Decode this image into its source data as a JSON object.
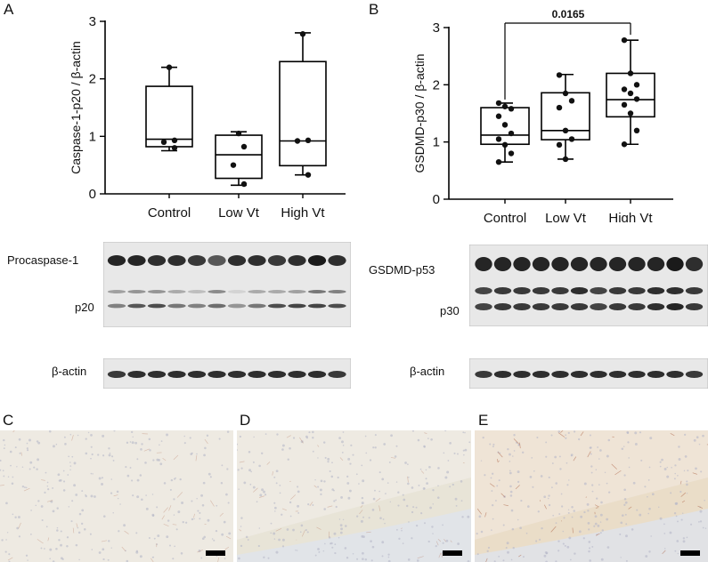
{
  "panels": {
    "a": "A",
    "b": "B",
    "c": "C",
    "d": "D",
    "e": "E"
  },
  "chart_data": [
    {
      "type": "box",
      "panel": "A",
      "ylabel": "Caspase-1-p20 / β-actin",
      "ylim": [
        0,
        3
      ],
      "yticks": [
        "0",
        "1",
        "2",
        "3"
      ],
      "categories": [
        "Control",
        "Low Vt",
        "High Vt"
      ],
      "boxes": [
        {
          "min": 0.75,
          "q1": 0.82,
          "median": 0.95,
          "q3": 1.87,
          "max": 2.2
        },
        {
          "min": 0.15,
          "q1": 0.27,
          "median": 0.68,
          "q3": 1.02,
          "max": 1.08
        },
        {
          "min": 0.33,
          "q1": 0.49,
          "median": 0.92,
          "q3": 2.3,
          "max": 2.8
        }
      ],
      "points": [
        [
          2.2,
          0.93,
          0.9,
          0.8
        ],
        [
          1.05,
          0.82,
          0.5,
          0.17
        ],
        [
          2.78,
          0.93,
          0.92,
          0.33
        ]
      ]
    },
    {
      "type": "box",
      "panel": "B",
      "ylabel": "GSDMD-p30 / β-actin",
      "ylim": [
        0,
        3
      ],
      "yticks": [
        "0",
        "1",
        "2",
        "3"
      ],
      "categories": [
        "Control",
        "Low Vt",
        "High Vt"
      ],
      "boxes": [
        {
          "min": 0.65,
          "q1": 0.96,
          "median": 1.12,
          "q3": 1.6,
          "max": 1.68
        },
        {
          "min": 0.7,
          "q1": 1.04,
          "median": 1.2,
          "q3": 1.86,
          "max": 2.18
        },
        {
          "min": 0.96,
          "q1": 1.44,
          "median": 1.74,
          "q3": 2.2,
          "max": 2.78
        }
      ],
      "points": [
        [
          1.68,
          1.62,
          1.58,
          1.45,
          1.3,
          1.15,
          1.05,
          0.95,
          0.8,
          0.65
        ],
        [
          2.17,
          1.85,
          1.72,
          1.6,
          1.2,
          1.05,
          0.95,
          0.7
        ],
        [
          2.78,
          2.2,
          2.0,
          1.92,
          1.85,
          1.75,
          1.65,
          1.5,
          1.2,
          0.96
        ]
      ],
      "annotation": "0.0165"
    }
  ],
  "blots": {
    "left": {
      "labels": {
        "procaspase": "Procaspase-1",
        "p20": "p20",
        "actin": "β-actin"
      },
      "lanes": 12,
      "bands": [
        {
          "name": "procaspase",
          "intensity": [
            0.95,
            0.95,
            0.9,
            0.9,
            0.85,
            0.7,
            0.9,
            0.9,
            0.85,
            0.9,
            1.0,
            0.9
          ]
        },
        {
          "name": "p20-upper",
          "intensity": [
            0.35,
            0.4,
            0.4,
            0.3,
            0.2,
            0.45,
            0.1,
            0.3,
            0.3,
            0.35,
            0.55,
            0.5
          ]
        },
        {
          "name": "p20",
          "intensity": [
            0.5,
            0.7,
            0.75,
            0.55,
            0.5,
            0.6,
            0.4,
            0.55,
            0.75,
            0.8,
            0.8,
            0.75
          ]
        },
        {
          "name": "actin",
          "intensity": [
            0.85,
            0.9,
            0.9,
            0.9,
            0.9,
            0.9,
            0.9,
            0.9,
            0.9,
            0.9,
            0.9,
            0.85
          ]
        }
      ]
    },
    "right": {
      "labels": {
        "gsdmd": "GSDMD-p53",
        "p30": "p30",
        "actin": "β-actin"
      },
      "lanes": 12,
      "bands": [
        {
          "name": "gsdmd",
          "intensity": [
            0.95,
            0.95,
            0.95,
            0.95,
            0.95,
            0.95,
            0.95,
            0.95,
            0.95,
            0.95,
            1.0,
            0.9
          ]
        },
        {
          "name": "p30-upper",
          "intensity": [
            0.8,
            0.85,
            0.85,
            0.85,
            0.85,
            0.9,
            0.8,
            0.85,
            0.85,
            0.9,
            0.9,
            0.85
          ]
        },
        {
          "name": "p30",
          "intensity": [
            0.8,
            0.85,
            0.85,
            0.85,
            0.85,
            0.85,
            0.8,
            0.85,
            0.85,
            0.9,
            0.95,
            0.85
          ]
        },
        {
          "name": "actin",
          "intensity": [
            0.85,
            0.9,
            0.9,
            0.9,
            0.9,
            0.9,
            0.9,
            0.9,
            0.9,
            0.9,
            0.9,
            0.85
          ]
        }
      ]
    }
  },
  "colors": {
    "tissue": "#eeeae2",
    "stain": "#a85a3a",
    "blot_bg": "#e8e8e8",
    "band": "#1a1a1a"
  }
}
